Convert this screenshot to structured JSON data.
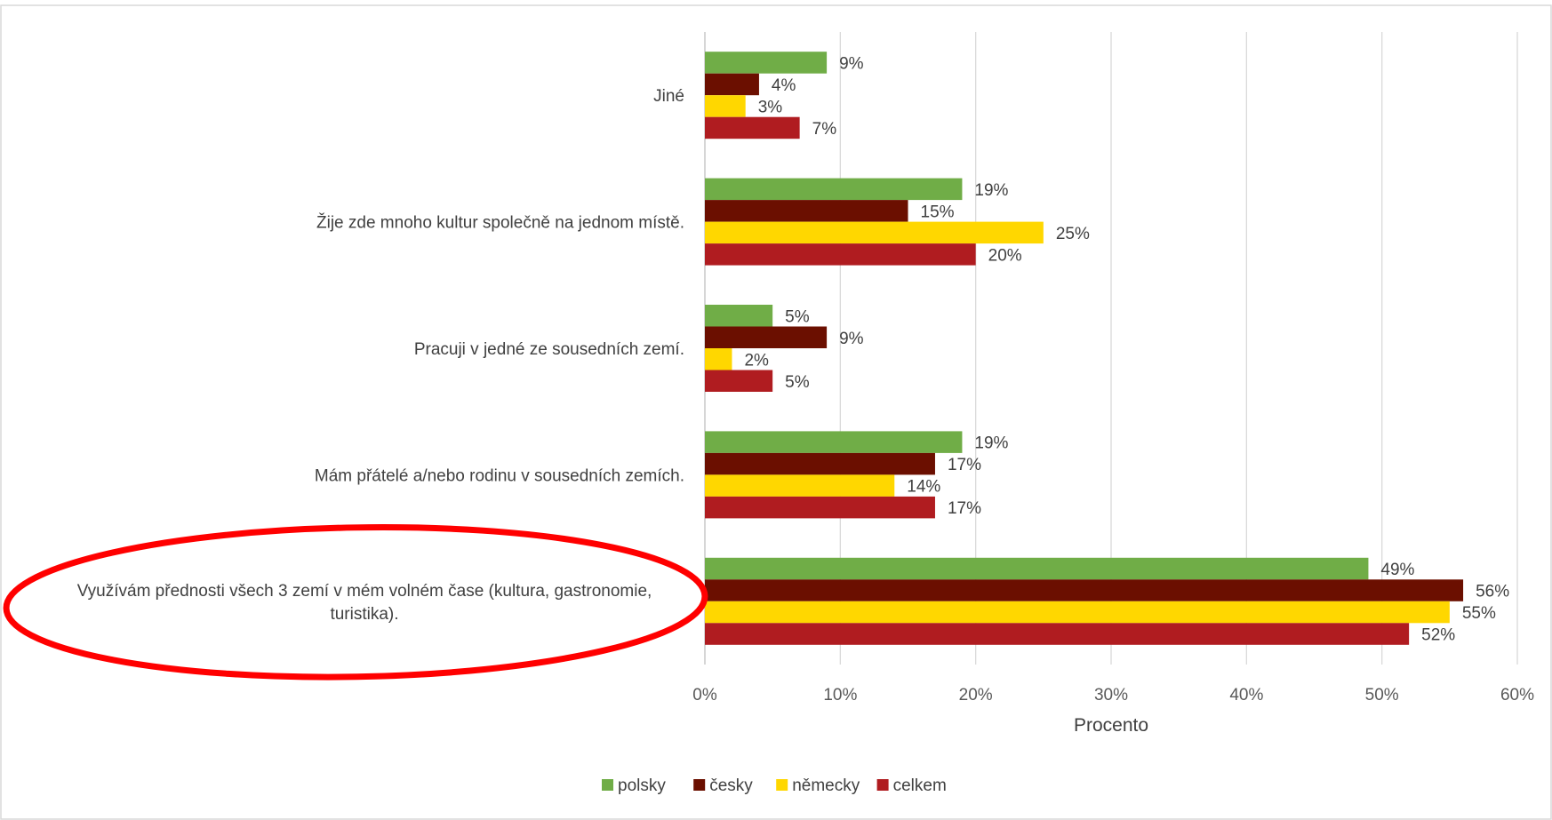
{
  "chart_data": {
    "type": "bar",
    "orientation": "horizontal",
    "categories": [
      "Jiné",
      "Žije zde mnoho kultur společně na jednom místě.",
      "Pracuji v jedné ze sousedních zemí.",
      "Mám přátelé a/nebo rodinu v sousedních zemích.",
      "Využívám přednosti všech 3 zemí v mém volném čase (kultura, gastronomie, turistika)."
    ],
    "series": [
      {
        "name": "polsky",
        "color": "#70ad47",
        "values": [
          9,
          19,
          5,
          19,
          49
        ],
        "labels": [
          "9%",
          "19%",
          "5%",
          "19%",
          "49%"
        ]
      },
      {
        "name": "česky",
        "color": "#6b0f00",
        "values": [
          4,
          15,
          9,
          17,
          56
        ],
        "labels": [
          "4%",
          "15%",
          "9%",
          "17%",
          "56%"
        ]
      },
      {
        "name": "německy",
        "color": "#ffd700",
        "values": [
          3,
          25,
          2,
          14,
          55
        ],
        "labels": [
          "3%",
          "25%",
          "2%",
          "14%",
          "55%"
        ]
      },
      {
        "name": "celkem",
        "color": "#b01c20",
        "values": [
          7,
          20,
          5,
          17,
          52
        ],
        "labels": [
          "7%",
          "20%",
          "5%",
          "17%",
          "52%"
        ]
      }
    ],
    "xlabel": "Procento",
    "xlim": [
      0,
      60
    ],
    "xticks": [
      "0%",
      "10%",
      "20%",
      "30%",
      "40%",
      "50%",
      "60%"
    ],
    "grid": "vertical",
    "legend_position": "bottom",
    "highlight": {
      "category_index": 4,
      "shape": "ellipse",
      "color": "#ff0000"
    }
  }
}
